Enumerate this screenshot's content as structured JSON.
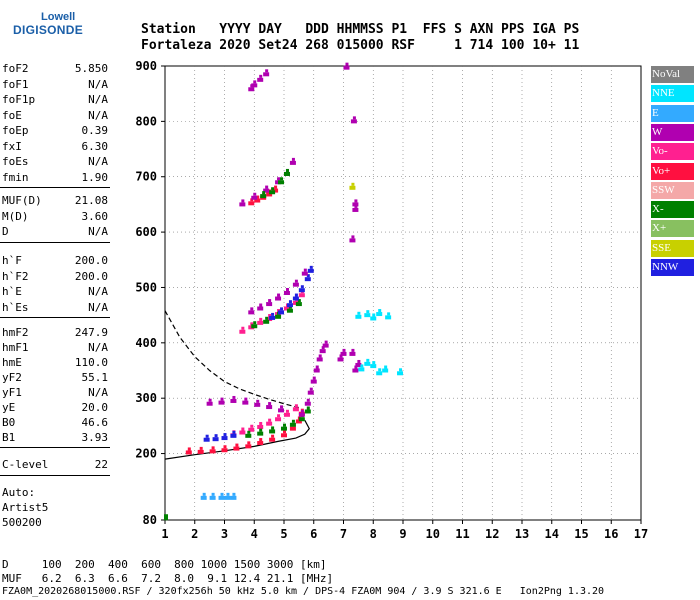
{
  "logo": {
    "line1": "Lowell",
    "line2": "DIGISONDE"
  },
  "header": {
    "row1": "Station   YYYY DAY   DDD HHMMSS P1  FFS S AXN PPS IGA PS",
    "row2": "Fortaleza 2020 Set24 268 015000 RSF     1 714 100 10+ 11"
  },
  "sidebar": {
    "group1": [
      {
        "k": "foF2",
        "v": "5.850"
      },
      {
        "k": "foF1",
        "v": "N/A"
      },
      {
        "k": "foF1p",
        "v": "N/A"
      },
      {
        "k": "foE",
        "v": "N/A"
      },
      {
        "k": "foEp",
        "v": "0.39"
      },
      {
        "k": "fxI",
        "v": "6.30"
      },
      {
        "k": "foEs",
        "v": "N/A"
      },
      {
        "k": "fmin",
        "v": "1.90"
      }
    ],
    "group2": [
      {
        "k": "MUF(D)",
        "v": "21.08"
      },
      {
        "k": "M(D)",
        "v": "3.60"
      },
      {
        "k": "D",
        "v": "N/A"
      }
    ],
    "group3": [
      {
        "k": "h`F",
        "v": "200.0"
      },
      {
        "k": "h`F2",
        "v": "200.0"
      },
      {
        "k": "h`E",
        "v": "N/A"
      },
      {
        "k": "h`Es",
        "v": "N/A"
      }
    ],
    "group4": [
      {
        "k": "hmF2",
        "v": "247.9"
      },
      {
        "k": "hmF1",
        "v": "N/A"
      },
      {
        "k": "hmE",
        "v": "110.0"
      },
      {
        "k": "yF2",
        "v": "55.1"
      },
      {
        "k": "yF1",
        "v": "N/A"
      },
      {
        "k": "yE",
        "v": "20.0"
      },
      {
        "k": "B0",
        "v": "46.6"
      },
      {
        "k": "B1",
        "v": "3.93"
      }
    ],
    "group5": [
      {
        "k": "C-level",
        "v": "22"
      }
    ],
    "auto": [
      "Auto:",
      "Artist5",
      "500200"
    ]
  },
  "bottom": {
    "d_row": "D     100  200  400  600  800 1000 1500 3000 [km]",
    "muf_row": "MUF   6.2  6.3  6.6  7.2  8.0  9.1 12.4 21.1 [MHz]",
    "footer": "FZA0M_2020268015000.RSF / 320fx256h 50 kHz 5.0 km / DPS-4 FZA0M 904 / 3.9 S 321.6 E   Ion2Png 1.3.20"
  },
  "legend": [
    {
      "label": "NoVal",
      "color": "#808080"
    },
    {
      "label": "NNE",
      "color": "#00e5ff"
    },
    {
      "label": "E",
      "color": "#33aaff"
    },
    {
      "label": "W",
      "color": "#b000b0"
    },
    {
      "label": "Vo-",
      "color": "#ff2090"
    },
    {
      "label": "Vo+",
      "color": "#ff1040"
    },
    {
      "label": "SSW",
      "color": "#f4a8a8"
    },
    {
      "label": "X-",
      "color": "#008000"
    },
    {
      "label": "X+",
      "color": "#88c060"
    },
    {
      "label": "SSE",
      "color": "#c8d000"
    },
    {
      "label": "NNW",
      "color": "#2020e0"
    }
  ],
  "chart_data": {
    "type": "scatter",
    "xlabel": "",
    "ylabel": "",
    "xlim": [
      1,
      17
    ],
    "ylim": [
      80,
      900
    ],
    "xticks": [
      1,
      2,
      3,
      4,
      5,
      6,
      7,
      8,
      9,
      10,
      11,
      12,
      13,
      14,
      15,
      16,
      17
    ],
    "yticks": [
      80,
      200,
      300,
      400,
      500,
      600,
      700,
      800,
      900
    ],
    "grid": true,
    "curves": [
      {
        "name": "profile-solid",
        "style": "solid",
        "x": [
          1.0,
          2.0,
          3.0,
          4.0,
          4.8,
          5.4,
          5.7,
          5.85,
          5.7
        ],
        "y": [
          190,
          198,
          205,
          213,
          222,
          228,
          235,
          245,
          260
        ]
      },
      {
        "name": "profile-dashed",
        "style": "dashed",
        "x": [
          1.0,
          1.5,
          2.0,
          2.5,
          3.0,
          3.5,
          4.0,
          4.5,
          5.0,
          5.5
        ],
        "y": [
          458,
          410,
          375,
          350,
          330,
          317,
          307,
          298,
          290,
          283
        ]
      }
    ],
    "traces": [
      {
        "color": "#ff1040",
        "x": [
          1.8,
          2.2,
          2.6,
          3.0,
          3.4,
          3.8,
          4.2,
          4.6,
          5.0,
          5.3,
          5.5,
          5.6
        ],
        "y": [
          202,
          203,
          204,
          206,
          209,
          213,
          219,
          225,
          233,
          245,
          258,
          272
        ]
      },
      {
        "color": "#ff2090",
        "x": [
          3.3,
          3.6,
          3.9,
          4.2,
          4.5,
          4.8,
          5.1,
          5.4
        ],
        "y": [
          233,
          238,
          243,
          248,
          254,
          262,
          270,
          280
        ]
      },
      {
        "color": "#008000",
        "x": [
          3.8,
          4.2,
          4.6,
          5.0,
          5.3,
          5.6,
          5.8
        ],
        "y": [
          232,
          236,
          240,
          245,
          252,
          262,
          276
        ]
      },
      {
        "color": "#b000b0",
        "x": [
          5.6,
          5.8,
          5.9,
          6.0,
          6.1,
          6.2,
          6.3,
          6.4
        ],
        "y": [
          270,
          290,
          310,
          330,
          350,
          370,
          385,
          395
        ]
      },
      {
        "color": "#b000b0",
        "x": [
          2.5,
          2.9,
          3.3,
          3.7,
          4.1,
          4.5,
          4.9
        ],
        "y": [
          290,
          292,
          295,
          292,
          288,
          284,
          278
        ]
      },
      {
        "color": "#2020e0",
        "x": [
          2.4,
          2.7,
          3.0,
          3.3
        ],
        "y": [
          225,
          226,
          228,
          232
        ]
      },
      {
        "color": "#ff2090",
        "x": [
          3.6,
          3.9,
          4.2,
          4.5,
          4.8,
          5.1,
          5.4,
          5.6
        ],
        "y": [
          420,
          428,
          436,
          443,
          452,
          462,
          472,
          486
        ]
      },
      {
        "color": "#008000",
        "x": [
          4.0,
          4.4,
          4.8,
          5.2,
          5.5
        ],
        "y": [
          430,
          438,
          447,
          458,
          470
        ]
      },
      {
        "color": "#2020e0",
        "x": [
          4.6,
          4.9,
          5.2,
          5.4,
          5.6,
          5.8,
          5.9
        ],
        "y": [
          445,
          455,
          468,
          480,
          495,
          515,
          530
        ]
      },
      {
        "color": "#b000b0",
        "x": [
          3.9,
          4.2,
          4.5,
          4.8,
          5.1,
          5.4,
          5.7
        ],
        "y": [
          455,
          462,
          470,
          480,
          490,
          505,
          525
        ]
      },
      {
        "color": "#ff1040",
        "x": [
          3.9,
          4.1,
          4.3,
          4.5,
          4.7
        ],
        "y": [
          652,
          657,
          662,
          668,
          675
        ]
      },
      {
        "color": "#b000b0",
        "x": [
          3.6,
          4.0,
          4.4,
          4.8,
          5.1,
          5.3
        ],
        "y": [
          650,
          662,
          675,
          690,
          705,
          725
        ]
      },
      {
        "color": "#008000",
        "x": [
          4.3,
          4.6,
          4.9,
          5.1
        ],
        "y": [
          665,
          672,
          690,
          705
        ]
      },
      {
        "color": "#b000b0",
        "x": [
          3.9,
          4.0,
          4.2,
          4.4
        ],
        "y": [
          858,
          865,
          875,
          885
        ]
      },
      {
        "color": "#b000b0",
        "x": [
          6.9,
          7.0,
          7.3,
          7.4,
          7.5
        ],
        "y": [
          370,
          380,
          380,
          350,
          360
        ]
      },
      {
        "color": "#00e5ff",
        "x": [
          7.6,
          7.8,
          8.0,
          8.2,
          8.4,
          8.9
        ],
        "y": [
          352,
          362,
          358,
          345,
          350,
          345
        ]
      },
      {
        "color": "#00e5ff",
        "x": [
          7.5,
          7.8,
          8.0,
          8.2,
          8.5
        ],
        "y": [
          447,
          450,
          444,
          452,
          446
        ]
      },
      {
        "color": "#b000b0",
        "x": [
          7.1,
          7.35,
          7.4,
          7.4,
          7.3
        ],
        "y": [
          897,
          800,
          650,
          640,
          585
        ]
      },
      {
        "color": "#c8d000",
        "x": [
          7.3
        ],
        "y": [
          680
        ]
      },
      {
        "color": "#33aaff",
        "x": [
          2.3,
          2.6,
          2.9,
          3.1,
          3.3
        ],
        "y": [
          120,
          120,
          120,
          120,
          120
        ]
      }
    ]
  }
}
